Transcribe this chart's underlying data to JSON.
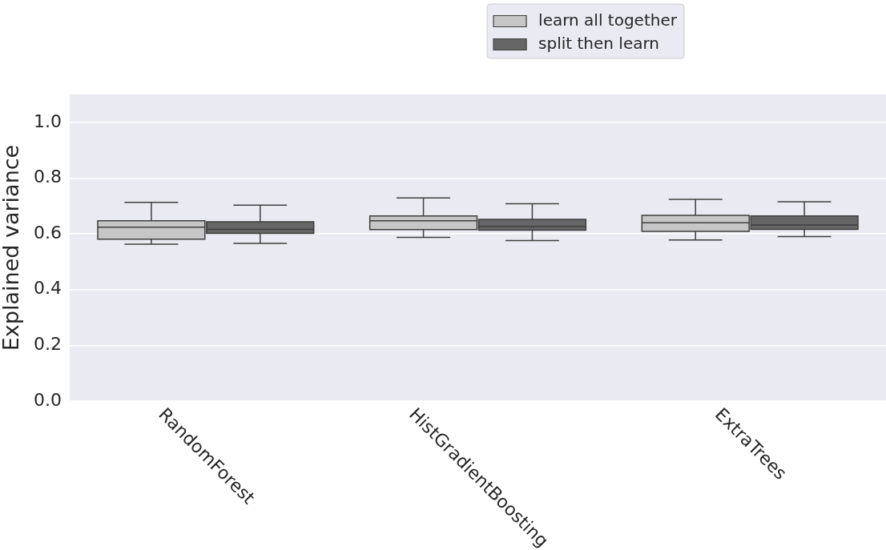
{
  "chart_data": {
    "type": "box",
    "ylabel": "Explained variance",
    "categories": [
      "RandomForest",
      "HistGradientBoosting",
      "ExtraTrees"
    ],
    "series": [
      {
        "name": "learn all together",
        "color": "#c6c6c6",
        "boxes": [
          {
            "low": 0.563,
            "q1": 0.581,
            "median": 0.624,
            "q3": 0.647,
            "high": 0.713
          },
          {
            "low": 0.587,
            "q1": 0.615,
            "median": 0.647,
            "q3": 0.664,
            "high": 0.729
          },
          {
            "low": 0.578,
            "q1": 0.609,
            "median": 0.64,
            "q3": 0.666,
            "high": 0.724
          }
        ]
      },
      {
        "name": "split then learn",
        "color": "#666666",
        "boxes": [
          {
            "low": 0.566,
            "q1": 0.602,
            "median": 0.616,
            "q3": 0.643,
            "high": 0.703
          },
          {
            "low": 0.576,
            "q1": 0.613,
            "median": 0.626,
            "q3": 0.652,
            "high": 0.708
          },
          {
            "low": 0.59,
            "q1": 0.616,
            "median": 0.632,
            "q3": 0.664,
            "high": 0.715
          }
        ]
      }
    ],
    "ylim": [
      0,
      1.1
    ],
    "yticks": [
      {
        "value": 0,
        "label": "0.0"
      },
      0.2,
      0.4,
      0.6,
      0.8,
      {
        "value": 1,
        "label": "1.0"
      }
    ],
    "grid": "y",
    "legend": "top"
  }
}
